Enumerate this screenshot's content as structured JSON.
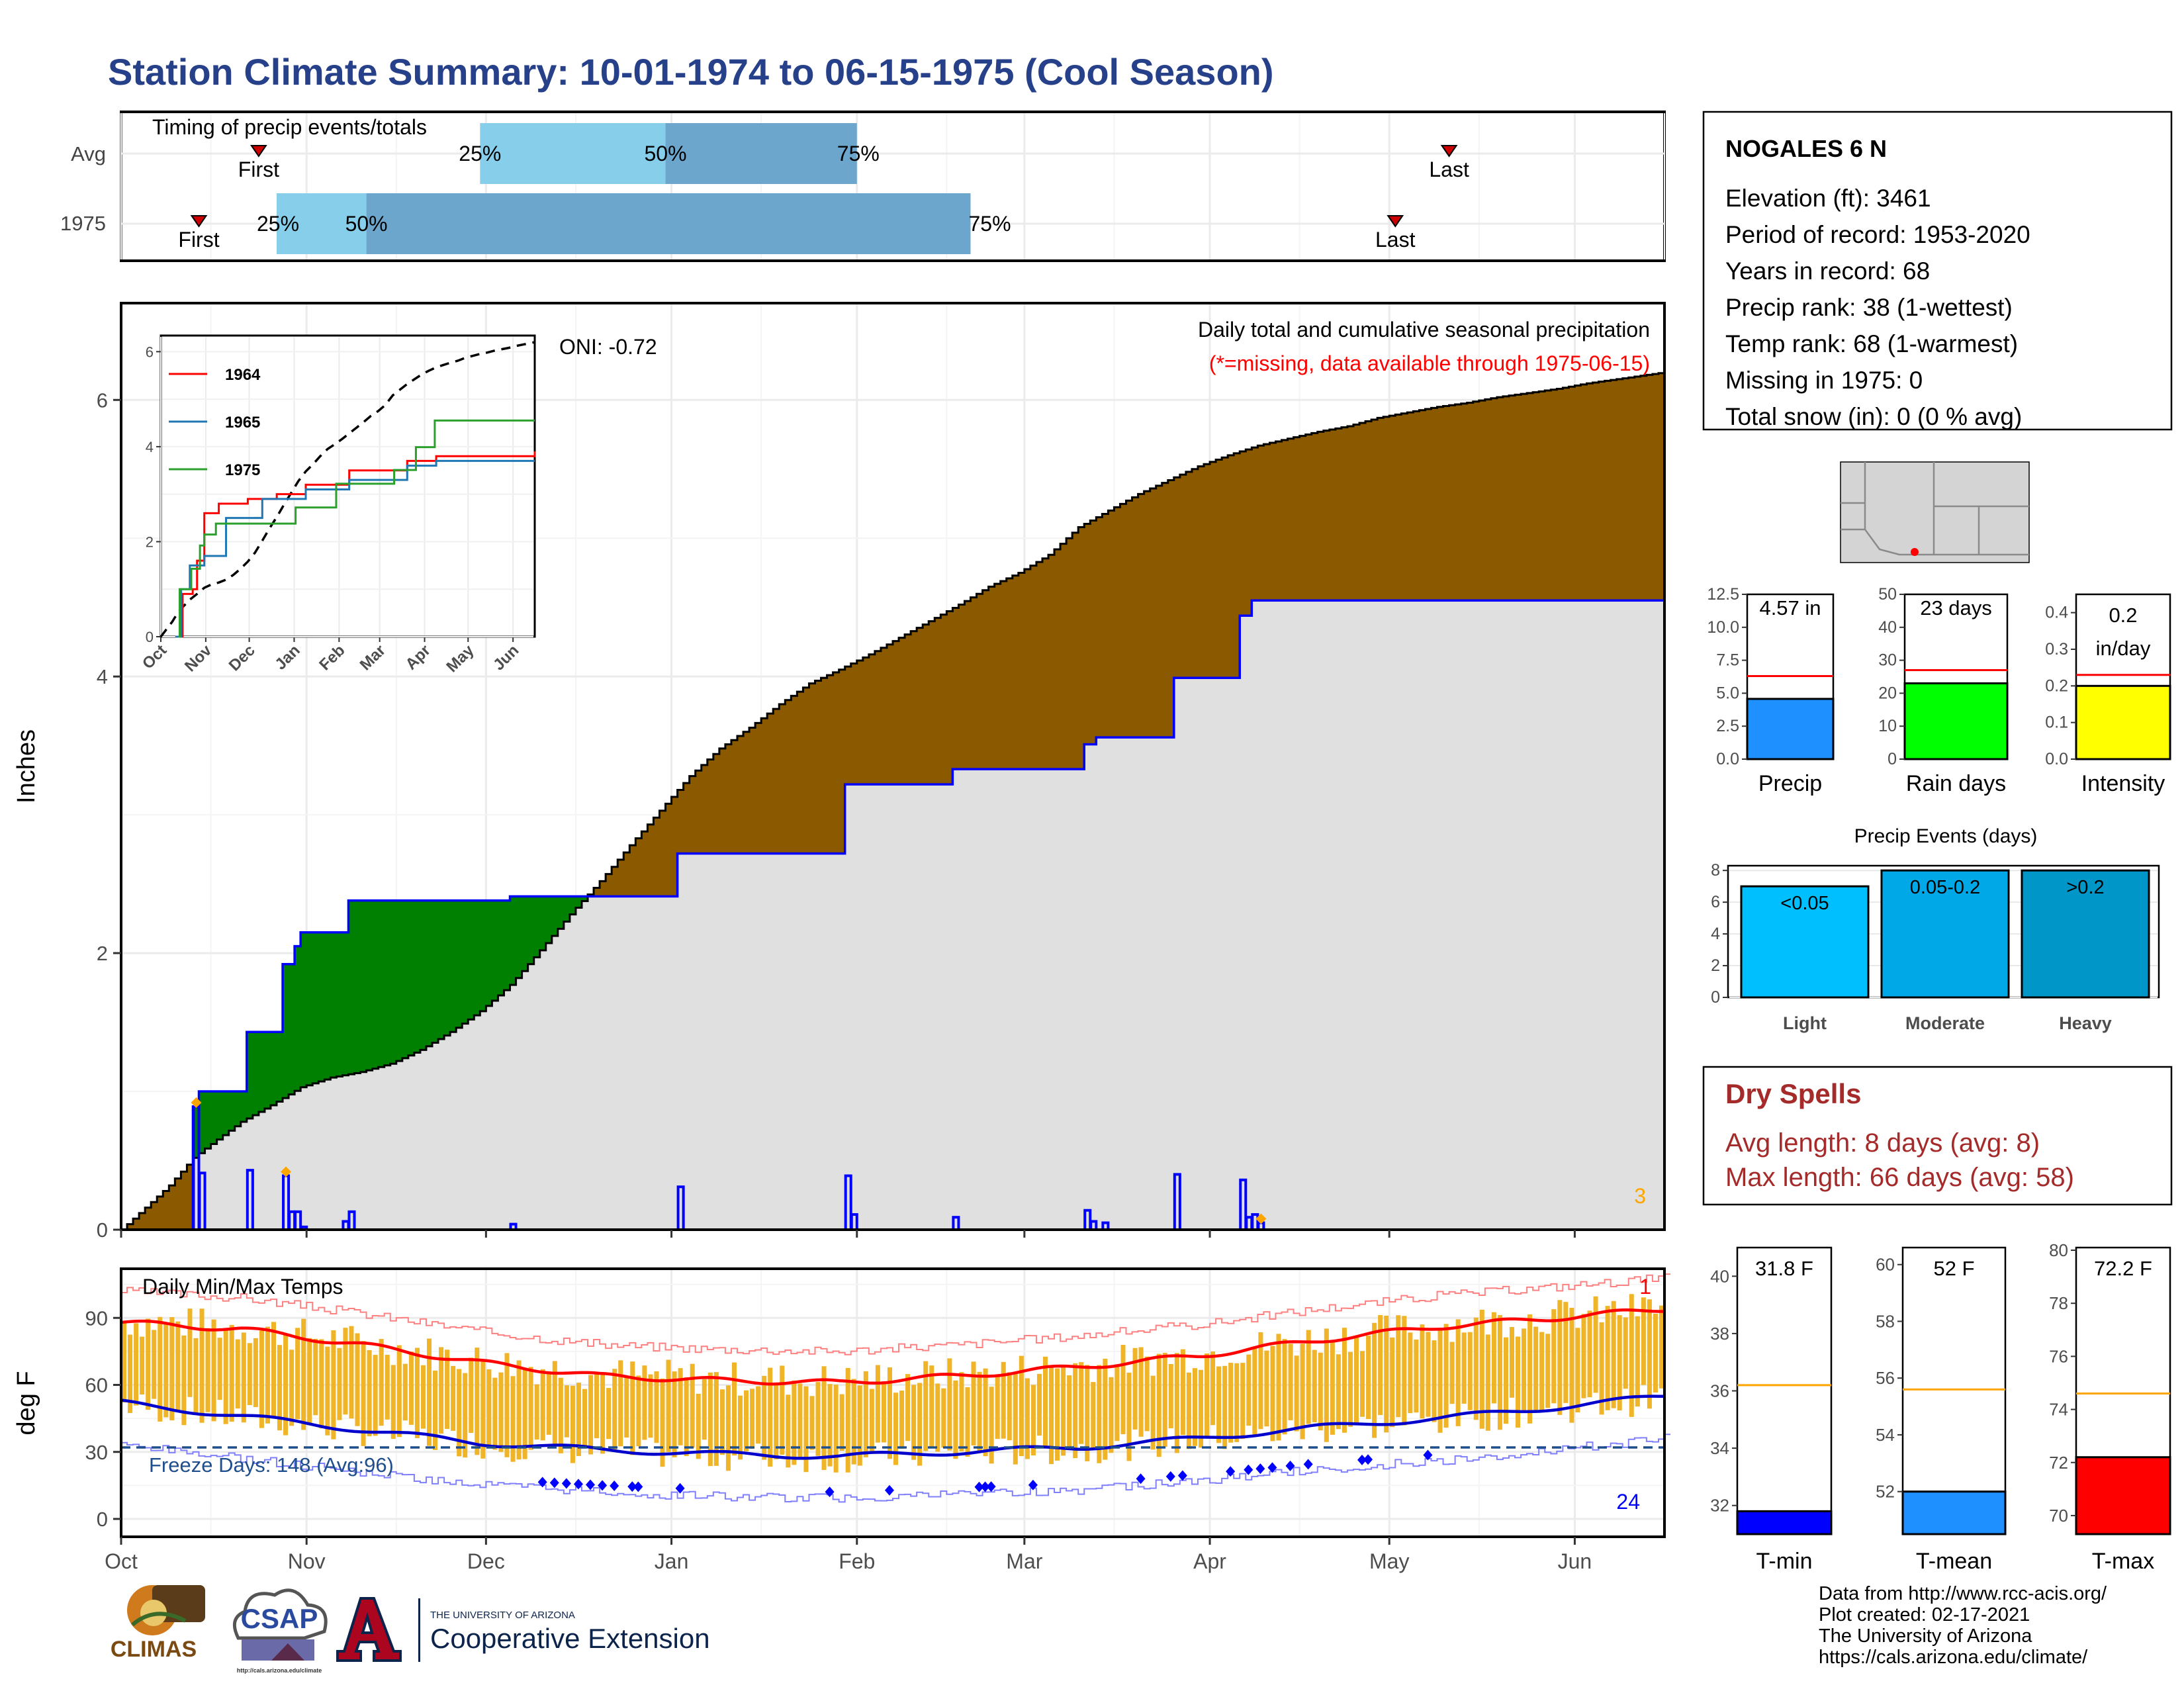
{
  "title": "Station Climate Summary: 10-01-1974 to 06-15-1975 (Cool Season)",
  "colors": {
    "title": "#26408a",
    "precip_1975_fill": "#8b5a00",
    "precip_deficit_fill": "#008000",
    "avg_cum_fill": "#e0e0e0",
    "daily_precip": "#0000ff",
    "temp_bars": "#f0b428",
    "max_line": "#ff0000",
    "min_line": "#0000cc",
    "dry_spells": "#a52a2a"
  },
  "timing_panel": {
    "title": "Timing of precip events/totals",
    "rows": [
      {
        "label": "Avg",
        "first": "First",
        "last": "Last",
        "p25": "25%",
        "p50": "50%",
        "p75": "75%",
        "first_day": 23,
        "last_day": 222,
        "day25": 60,
        "day50": 91,
        "day75": 123
      },
      {
        "label": "1975",
        "first": "First",
        "last": "Last",
        "p25": "25%",
        "p50": "50%",
        "p75": "75%",
        "first_day": 13,
        "last_day": 213,
        "day25": 26,
        "day50": 41,
        "day75": 142
      }
    ]
  },
  "chart_data": [
    {
      "type": "area",
      "ylabel": "Inches",
      "annotation": "Daily total and cumulative seasonal precipitation",
      "missing_note": "(*=missing, data available through 1975-06-15)",
      "oni": "ONI: -0.72",
      "corner_count": "3",
      "ylim": [
        0,
        6.7
      ],
      "yticks": [
        "0",
        "2",
        "4",
        "6"
      ],
      "months": [
        "Oct",
        "Nov",
        "Dec",
        "Jan",
        "Feb",
        "Mar",
        "Apr",
        "May",
        "Jun"
      ],
      "month_starts": [
        0,
        31,
        61,
        92,
        123,
        151,
        182,
        212,
        243
      ],
      "season_days": 258,
      "avg_cumulative": [
        [
          0,
          0
        ],
        [
          3,
          0.12
        ],
        [
          8,
          0.32
        ],
        [
          12,
          0.52
        ],
        [
          15,
          0.62
        ],
        [
          20,
          0.78
        ],
        [
          25,
          0.9
        ],
        [
          30,
          1.03
        ],
        [
          35,
          1.1
        ],
        [
          40,
          1.14
        ],
        [
          45,
          1.2
        ],
        [
          50,
          1.3
        ],
        [
          55,
          1.43
        ],
        [
          60,
          1.58
        ],
        [
          65,
          1.77
        ],
        [
          70,
          2.02
        ],
        [
          75,
          2.28
        ],
        [
          80,
          2.52
        ],
        [
          85,
          2.78
        ],
        [
          90,
          3.03
        ],
        [
          95,
          3.28
        ],
        [
          100,
          3.48
        ],
        [
          105,
          3.63
        ],
        [
          110,
          3.8
        ],
        [
          115,
          3.95
        ],
        [
          120,
          4.05
        ],
        [
          125,
          4.16
        ],
        [
          130,
          4.28
        ],
        [
          135,
          4.4
        ],
        [
          140,
          4.52
        ],
        [
          145,
          4.65
        ],
        [
          150,
          4.75
        ],
        [
          155,
          4.88
        ],
        [
          160,
          5.08
        ],
        [
          165,
          5.2
        ],
        [
          170,
          5.32
        ],
        [
          175,
          5.42
        ],
        [
          180,
          5.52
        ],
        [
          185,
          5.6
        ],
        [
          190,
          5.67
        ],
        [
          195,
          5.72
        ],
        [
          200,
          5.77
        ],
        [
          205,
          5.81
        ],
        [
          210,
          5.87
        ],
        [
          215,
          5.91
        ],
        [
          220,
          5.95
        ],
        [
          225,
          5.98
        ],
        [
          230,
          6.02
        ],
        [
          235,
          6.05
        ],
        [
          240,
          6.08
        ],
        [
          245,
          6.12
        ],
        [
          250,
          6.15
        ],
        [
          258,
          6.2
        ]
      ],
      "cumulative_1975": [
        [
          0,
          0
        ],
        [
          12,
          0
        ],
        [
          12,
          0.89
        ],
        [
          13,
          0.89
        ],
        [
          13,
          1.0
        ],
        [
          21,
          1.0
        ],
        [
          21,
          1.43
        ],
        [
          27,
          1.43
        ],
        [
          27,
          1.92
        ],
        [
          29,
          1.92
        ],
        [
          29,
          2.05
        ],
        [
          30,
          2.05
        ],
        [
          30,
          2.15
        ],
        [
          38,
          2.15
        ],
        [
          38,
          2.38
        ],
        [
          65,
          2.38
        ],
        [
          65,
          2.41
        ],
        [
          93,
          2.41
        ],
        [
          93,
          2.72
        ],
        [
          121,
          2.72
        ],
        [
          121,
          3.22
        ],
        [
          139,
          3.22
        ],
        [
          139,
          3.33
        ],
        [
          161,
          3.33
        ],
        [
          161,
          3.51
        ],
        [
          163,
          3.51
        ],
        [
          163,
          3.56
        ],
        [
          176,
          3.56
        ],
        [
          176,
          3.99
        ],
        [
          187,
          3.99
        ],
        [
          187,
          4.44
        ],
        [
          189,
          4.44
        ],
        [
          189,
          4.55
        ],
        [
          258,
          4.55
        ]
      ],
      "daily_precip": [
        [
          12,
          0.89
        ],
        [
          13,
          0.41
        ],
        [
          21,
          0.43
        ],
        [
          27,
          0.39
        ],
        [
          28,
          0.13
        ],
        [
          29,
          0.13
        ],
        [
          30,
          0.02
        ],
        [
          37,
          0.06
        ],
        [
          38,
          0.13
        ],
        [
          65,
          0.04
        ],
        [
          93,
          0.31
        ],
        [
          121,
          0.39
        ],
        [
          122,
          0.11
        ],
        [
          139,
          0.09
        ],
        [
          161,
          0.14
        ],
        [
          162,
          0.06
        ],
        [
          164,
          0.05
        ],
        [
          176,
          0.4
        ],
        [
          187,
          0.36
        ],
        [
          188,
          0.09
        ],
        [
          189,
          0.11
        ],
        [
          190,
          0.05
        ]
      ],
      "missing_days": [
        12,
        27,
        190
      ]
    },
    {
      "type": "line",
      "title": "1964 1965 1975",
      "series": [
        {
          "name": "1964",
          "values": [
            [
              10,
              0
            ],
            [
              15,
              0.9
            ],
            [
              22,
              1.0
            ],
            [
              25,
              1.6
            ],
            [
              30,
              2.6
            ],
            [
              40,
              2.8
            ],
            [
              60,
              2.9
            ],
            [
              80,
              3.0
            ],
            [
              100,
              3.2
            ],
            [
              130,
              3.5
            ],
            [
              170,
              3.7
            ],
            [
              190,
              3.8
            ],
            [
              258,
              3.9
            ]
          ]
        },
        {
          "name": "1965",
          "values": [
            [
              10,
              0
            ],
            [
              14,
              1.0
            ],
            [
              20,
              1.5
            ],
            [
              30,
              1.7
            ],
            [
              45,
              2.5
            ],
            [
              70,
              2.9
            ],
            [
              100,
              3.1
            ],
            [
              130,
              3.3
            ],
            [
              170,
              3.6
            ],
            [
              190,
              3.7
            ],
            [
              258,
              3.7
            ]
          ]
        },
        {
          "name": "1975",
          "values": [
            [
              12,
              0
            ],
            [
              13,
              1.0
            ],
            [
              21,
              1.43
            ],
            [
              27,
              1.92
            ],
            [
              30,
              2.15
            ],
            [
              38,
              2.38
            ],
            [
              93,
              2.72
            ],
            [
              121,
              3.22
            ],
            [
              161,
              3.51
            ],
            [
              176,
              3.99
            ],
            [
              189,
              4.55
            ],
            [
              258,
              4.55
            ]
          ]
        }
      ],
      "ylim": [
        0,
        6.2
      ],
      "yticks": [
        "0",
        "2",
        "4",
        "6"
      ],
      "months": [
        "Oct",
        "Nov",
        "Dec",
        "Jan",
        "Feb",
        "Mar",
        "Apr",
        "May",
        "Jun"
      ]
    },
    {
      "type": "bar",
      "title": "Daily Min/Max Temps",
      "ylabel": "deg F",
      "freeze_label": "Freeze Days: 148 (Avg:96)",
      "record_high_count": "1",
      "record_low_count": "24",
      "ylim": [
        -8,
        112
      ],
      "yticks": [
        "0",
        "30",
        "60",
        "90"
      ],
      "months": [
        "Oct",
        "Nov",
        "Dec",
        "Jan",
        "Feb",
        "Mar",
        "Apr",
        "May",
        "Jun"
      ],
      "freeze_line": 32
    }
  ],
  "station": {
    "name": "NOGALES 6 N",
    "lines": [
      "Elevation (ft): 3461",
      "Period of record: 1953-2020",
      "Years in record: 68",
      "Precip rank: 38 (1-wettest)",
      "Temp rank: 68 (1-warmest)",
      "Missing in 1975: 0",
      "Total snow (in): 0 (0 % avg)"
    ]
  },
  "mini_bars": [
    {
      "label": "Precip",
      "value_text": "4.57 in",
      "value": 4.57,
      "avg": 6.3,
      "ylim": [
        0,
        12.5
      ],
      "ticks": [
        "0.0",
        "2.5",
        "5.0",
        "7.5",
        "10.0",
        "12.5"
      ],
      "color": "#1e90ff"
    },
    {
      "label": "Rain days",
      "value_text": "23 days",
      "value": 23,
      "avg": 27,
      "ylim": [
        0,
        50
      ],
      "ticks": [
        "0",
        "10",
        "20",
        "30",
        "40",
        "50"
      ],
      "color": "#00ff00"
    },
    {
      "label": "Intensity",
      "value_text": "0.2 in/day",
      "value_text_1": "0.2",
      "value_text_2": "in/day",
      "value": 0.2,
      "avg": 0.23,
      "ylim": [
        0,
        0.45
      ],
      "ticks": [
        "0.0",
        "0.1",
        "0.2",
        "0.3",
        "0.4"
      ],
      "color": "#ffff00"
    }
  ],
  "precip_events": {
    "title": "Precip Events (days)",
    "ticks": [
      "0",
      "2",
      "4",
      "6",
      "8"
    ],
    "ylim": [
      0,
      8.3
    ],
    "bars": [
      {
        "label": "Light",
        "value_text": "<0.05",
        "value": 7,
        "color": "#00bfff"
      },
      {
        "label": "Moderate",
        "value_text": "0.05-0.2",
        "value": 8,
        "color": "#00a8e8"
      },
      {
        "label": "Heavy",
        "value_text": ">0.2",
        "value": 8,
        "color": "#0096c8"
      }
    ]
  },
  "dry_spells": {
    "title": "Dry Spells",
    "avg_length": "Avg length: 8 days (avg: 8)",
    "max_length": "Max length: 66 days (avg: 58)"
  },
  "temp_bars": [
    {
      "label": "T-min",
      "value_text": "31.8 F",
      "value": 31.8,
      "avg": 36.2,
      "ylim": [
        31,
        41
      ],
      "ticks": [
        "32",
        "34",
        "36",
        "38",
        "40"
      ],
      "color": "#0000ff"
    },
    {
      "label": "T-mean",
      "value_text": "52 F",
      "value": 52,
      "avg": 55.6,
      "ylim": [
        50.5,
        60.6
      ],
      "ticks": [
        "52",
        "54",
        "56",
        "58",
        "60"
      ],
      "color": "#1e90ff"
    },
    {
      "label": "T-max",
      "value_text": "72.2 F",
      "value": 72.2,
      "avg": 74.6,
      "ylim": [
        69.3,
        80.1
      ],
      "ticks": [
        "70",
        "72",
        "74",
        "76",
        "78",
        "80"
      ],
      "color": "#ff0000"
    }
  ],
  "credits": [
    "Data from http://www.rcc-acis.org/",
    "Plot created: 02-17-2021",
    "The University of Arizona",
    "https://cals.arizona.edu/climate/"
  ],
  "logos": {
    "climas": "CLIMAS",
    "csap": "CSAP",
    "csap_url": "http://cals.arizona.edu/climate",
    "ua_small": "THE UNIVERSITY OF ARIZONA",
    "ua_big": "Cooperative Extension"
  }
}
